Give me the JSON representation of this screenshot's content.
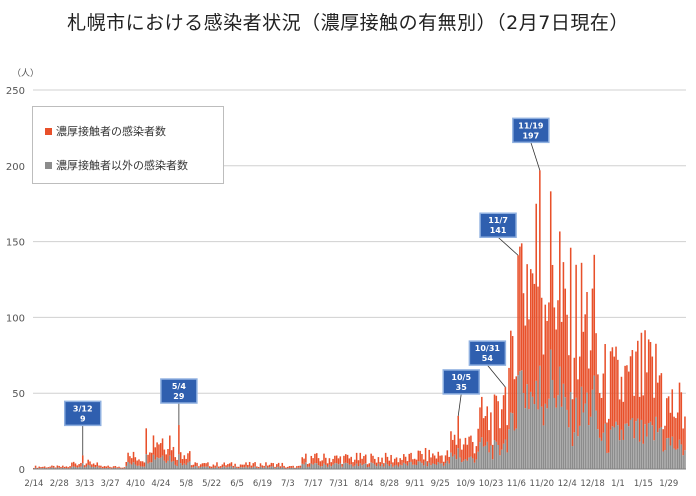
{
  "title": "札幌市における感染者状況（濃厚接触の有無別）（2月7日現在）",
  "colors": {
    "contact": "#E8502A",
    "noncontact": "#8C8C8C",
    "grid": "#D0D0D0",
    "axis": "#7F7F7F",
    "callout_fill": "#2F5FAF",
    "callout_border": "#8FB0E0",
    "callout_text": "#ffffff"
  },
  "chart_data": {
    "type": "bar",
    "stacked": true,
    "ylabel": "（人）",
    "ylim": [
      0,
      250
    ],
    "yticks": [
      0,
      50,
      100,
      150,
      200,
      250
    ],
    "grid": true,
    "legend_position": "top-left",
    "series": [
      {
        "name": "濃厚接触者の感染者数",
        "color": "#E8502A"
      },
      {
        "name": "濃厚接触者以外の感染者数",
        "color": "#8C8C8C"
      }
    ],
    "x_range": [
      "2020-02-14",
      "2021-02-07"
    ],
    "x_tick_labels": [
      "2/14",
      "2/28",
      "3/13",
      "3/27",
      "4/10",
      "4/24",
      "5/8",
      "5/22",
      "6/5",
      "6/19",
      "7/3",
      "7/17",
      "7/31",
      "8/14",
      "8/28",
      "9/11",
      "9/25",
      "10/9",
      "10/23",
      "11/6",
      "11/20",
      "12/4",
      "12/18",
      "1/1",
      "1/15",
      "1/29"
    ],
    "daily_totals": [
      {
        "from": "2020-02-14",
        "to": "2020-03-05",
        "value": 1.5
      },
      {
        "from": "2020-03-06",
        "to": "2020-03-20",
        "value": 4
      },
      {
        "from": "2020-03-21",
        "to": "2020-04-04",
        "value": 1.5
      },
      {
        "from": "2020-04-05",
        "to": "2020-04-15",
        "value": 8
      },
      {
        "from": "2020-04-16",
        "to": "2020-04-30",
        "value": 20
      },
      {
        "from": "2020-05-01",
        "to": "2020-05-10",
        "value": 12
      },
      {
        "from": "2020-05-11",
        "to": "2020-06-30",
        "value": 3
      },
      {
        "from": "2020-07-01",
        "to": "2020-07-10",
        "value": 1.5
      },
      {
        "from": "2020-07-11",
        "to": "2020-09-10",
        "value": 7
      },
      {
        "from": "2020-09-11",
        "to": "2020-09-30",
        "value": 9
      },
      {
        "from": "2020-10-01",
        "to": "2020-10-15",
        "value": 18
      },
      {
        "from": "2020-10-16",
        "to": "2020-10-28",
        "value": 32
      },
      {
        "from": "2020-10-29",
        "to": "2020-11-05",
        "value": 60
      },
      {
        "from": "2020-11-06",
        "to": "2020-11-30",
        "value": 130
      },
      {
        "from": "2020-12-01",
        "to": "2020-12-20",
        "value": 95
      },
      {
        "from": "2020-12-21",
        "to": "2021-01-10",
        "value": 55
      },
      {
        "from": "2021-01-11",
        "to": "2021-01-25",
        "value": 60
      },
      {
        "from": "2021-01-26",
        "to": "2021-02-07",
        "value": 40
      }
    ],
    "annotations": [
      {
        "date": "2020-03-12",
        "label": "3/12",
        "value": 9
      },
      {
        "date": "2020-05-04",
        "label": "5/4",
        "value": 29
      },
      {
        "date": "2020-10-05",
        "label": "10/5",
        "value": 35
      },
      {
        "date": "2020-10-31",
        "label": "10/31",
        "value": 54
      },
      {
        "date": "2020-11-07",
        "label": "11/7",
        "value": 141
      },
      {
        "date": "2020-11-19",
        "label": "11/19",
        "value": 197
      }
    ]
  }
}
